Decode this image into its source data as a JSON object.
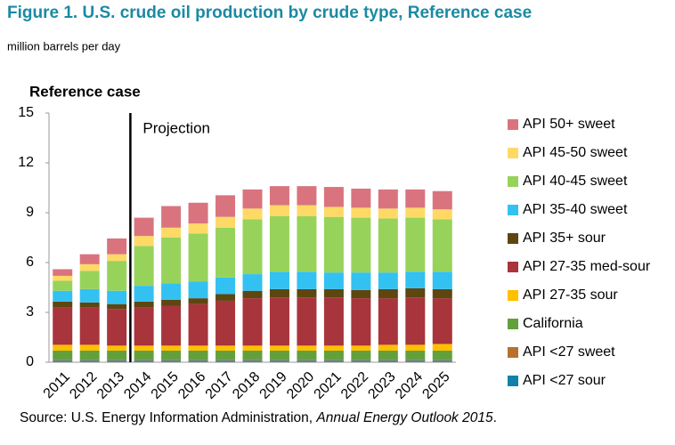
{
  "chart_data": {
    "type": "stacked_bar",
    "title": "Figure 1. U.S. crude oil production by crude type, Reference case",
    "unit_label": "million barrels per day",
    "subtitle": "Reference case",
    "annotation": "Projection",
    "projection_start": "2014",
    "source": [
      "Source: U.S. Energy Information Administration, ",
      "Annual Energy Outlook 2015",
      "."
    ],
    "categories": [
      "2011",
      "2012",
      "2013",
      "2014",
      "2015",
      "2016",
      "2017",
      "2018",
      "2019",
      "2020",
      "2021",
      "2022",
      "2023",
      "2024",
      "2025"
    ],
    "ylim": [
      0,
      15
    ],
    "yticks": [
      0,
      3,
      6,
      9,
      12,
      15
    ],
    "series": [
      {
        "name": "API <27 sour",
        "color": "#1380a8",
        "values": [
          0.1,
          0.1,
          0.1,
          0.1,
          0.1,
          0.1,
          0.1,
          0.1,
          0.1,
          0.1,
          0.1,
          0.1,
          0.1,
          0.1,
          0.1
        ]
      },
      {
        "name": "API <27 sweet",
        "color": "#b8712c",
        "values": [
          0.05,
          0.05,
          0.05,
          0.05,
          0.05,
          0.05,
          0.05,
          0.05,
          0.05,
          0.05,
          0.05,
          0.05,
          0.05,
          0.05,
          0.05
        ]
      },
      {
        "name": "California",
        "color": "#63a03c",
        "values": [
          0.55,
          0.55,
          0.55,
          0.55,
          0.55,
          0.55,
          0.55,
          0.55,
          0.55,
          0.55,
          0.55,
          0.55,
          0.55,
          0.55,
          0.55
        ]
      },
      {
        "name": "API 27-35 sour",
        "color": "#ffc000",
        "values": [
          0.35,
          0.35,
          0.3,
          0.3,
          0.3,
          0.3,
          0.3,
          0.3,
          0.3,
          0.3,
          0.3,
          0.3,
          0.35,
          0.35,
          0.4
        ]
      },
      {
        "name": "API 27-35 med-sour",
        "color": "#a8343c",
        "values": [
          2.25,
          2.25,
          2.2,
          2.3,
          2.4,
          2.5,
          2.7,
          2.85,
          2.9,
          2.9,
          2.9,
          2.85,
          2.8,
          2.85,
          2.75
        ]
      },
      {
        "name": "API 35+ sour",
        "color": "#5e4611",
        "values": [
          0.35,
          0.3,
          0.3,
          0.35,
          0.35,
          0.35,
          0.4,
          0.45,
          0.5,
          0.5,
          0.5,
          0.5,
          0.55,
          0.55,
          0.55
        ]
      },
      {
        "name": "API 35-40 sweet",
        "color": "#33c1f2",
        "values": [
          0.65,
          0.8,
          0.8,
          0.95,
          1.0,
          1.0,
          1.0,
          1.0,
          1.05,
          1.05,
          1.0,
          1.05,
          1.0,
          1.0,
          1.05
        ]
      },
      {
        "name": "API 40-45 sweet",
        "color": "#97d35a",
        "values": [
          0.6,
          1.1,
          1.8,
          2.4,
          2.75,
          2.9,
          3.0,
          3.3,
          3.35,
          3.35,
          3.35,
          3.3,
          3.25,
          3.25,
          3.15
        ]
      },
      {
        "name": "API 45-50 sweet",
        "color": "#ffd966",
        "values": [
          0.3,
          0.4,
          0.4,
          0.6,
          0.6,
          0.6,
          0.65,
          0.65,
          0.65,
          0.65,
          0.6,
          0.6,
          0.6,
          0.6,
          0.6
        ]
      },
      {
        "name": "API 50+ sweet",
        "color": "#d9747f",
        "values": [
          0.4,
          0.6,
          0.95,
          1.1,
          1.3,
          1.25,
          1.3,
          1.15,
          1.15,
          1.15,
          1.2,
          1.15,
          1.15,
          1.1,
          1.1
        ]
      }
    ]
  }
}
